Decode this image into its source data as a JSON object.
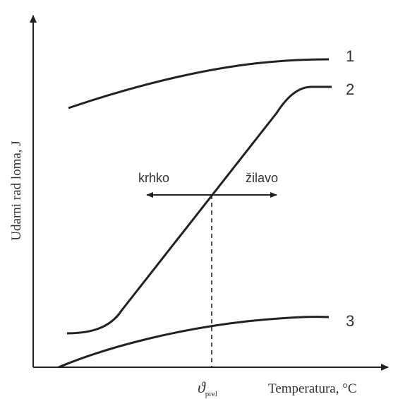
{
  "chart_data": {
    "type": "line",
    "title": "",
    "ylabel": "Udarni rad loma, J",
    "xlabel": "Temperatura, °C",
    "transition_mark": {
      "symbol": "ϑ",
      "subscript": "prel"
    },
    "series": [
      {
        "name": "1",
        "curve": "upper-shelf"
      },
      {
        "name": "2",
        "curve": "transition"
      },
      {
        "name": "3",
        "curve": "lower-shelf"
      }
    ],
    "annotations": {
      "left": "krhko",
      "right": "žilavo"
    },
    "axis_ticks": false,
    "grid": false,
    "legend": "inline-right"
  }
}
